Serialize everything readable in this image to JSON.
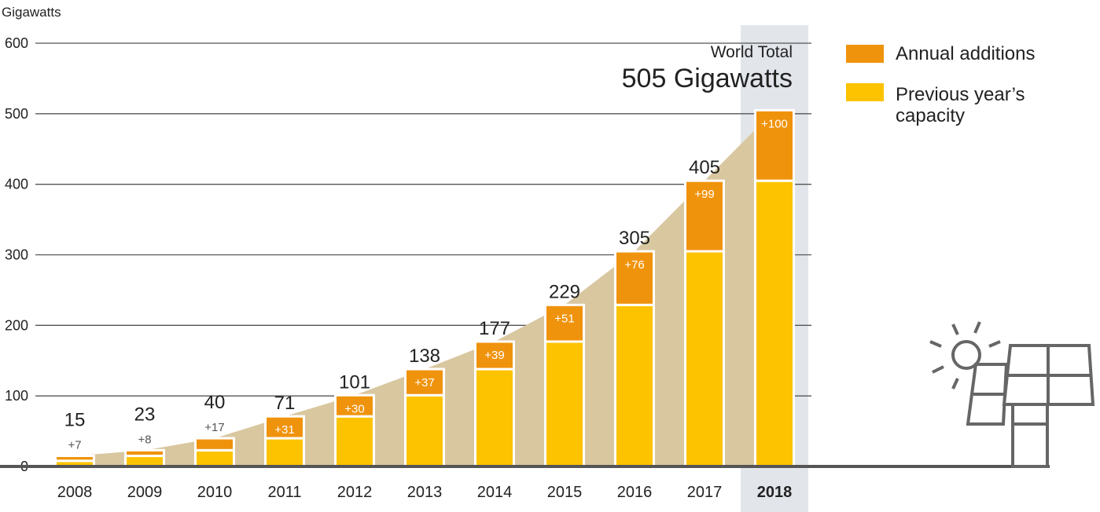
{
  "chart_data": {
    "type": "bar",
    "stacked": true,
    "ylabel": "Gigawatts",
    "ylim": [
      0,
      600
    ],
    "yticks": [
      0,
      100,
      200,
      300,
      400,
      500,
      600
    ],
    "categories": [
      "2008",
      "2009",
      "2010",
      "2011",
      "2012",
      "2013",
      "2014",
      "2015",
      "2016",
      "2017",
      "2018"
    ],
    "series": [
      {
        "name": "Previous year's capacity",
        "values": [
          8,
          15,
          23,
          40,
          71,
          101,
          138,
          177,
          229,
          305,
          405
        ]
      },
      {
        "name": "Annual additions",
        "values": [
          7,
          8,
          17,
          31,
          30,
          37,
          39,
          51,
          76,
          99,
          100
        ]
      }
    ],
    "totals": [
      15,
      23,
      40,
      71,
      101,
      138,
      177,
      229,
      305,
      405,
      505
    ],
    "addition_labels": [
      "+7",
      "+8",
      "+17",
      "+31",
      "+30",
      "+37",
      "+39",
      "+51",
      "+76",
      "+99",
      "+100"
    ],
    "highlight_category": "2018",
    "callout": {
      "line1": "World Total",
      "line2": "505 Gigawatts"
    },
    "legend": {
      "placement": "top-right",
      "items": [
        {
          "label": "Annual additions",
          "color": "#f0930c"
        },
        {
          "label_line1": "Previous year’s",
          "label_line2": "capacity",
          "color": "#fdc300"
        }
      ]
    },
    "colors": {
      "additions": "#f0930c",
      "previous": "#fdc300",
      "area": "#d9c7a0",
      "highlight": "#e2e6ea",
      "grid": "#555555",
      "baseline": "#555555",
      "panel_outline": "#666666"
    },
    "decoration": {
      "icon": "solar-panel-icon"
    }
  }
}
